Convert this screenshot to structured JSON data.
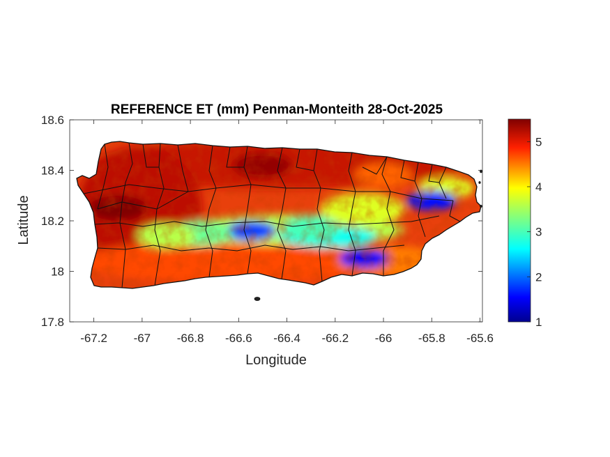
{
  "chart_data": {
    "type": "heatmap",
    "title": "REFERENCE ET (mm) Penman-Monteith 28-Oct-2025",
    "xlabel": "Longitude",
    "ylabel": "Latitude",
    "xlim": [
      -67.3,
      -65.59
    ],
    "ylim": [
      17.8,
      18.6
    ],
    "x_ticks": [
      -67.2,
      -67,
      -66.8,
      -66.6,
      -66.4,
      -66.2,
      -66,
      -65.8,
      -65.6
    ],
    "x_tick_labels": [
      "-67.2",
      "-67",
      "-66.8",
      "-66.6",
      "-66.4",
      "-66.2",
      "-66",
      "-65.8",
      "-65.6"
    ],
    "y_ticks": [
      17.8,
      18,
      18.2,
      18.4,
      18.6
    ],
    "y_tick_labels": [
      "17.8",
      "18",
      "18.2",
      "18.4",
      "18.6"
    ],
    "colorbar": {
      "colormap": "jet",
      "limits": [
        1,
        5.5
      ],
      "ticks": [
        1,
        2,
        3,
        4,
        5
      ],
      "tick_labels": [
        "1",
        "2",
        "3",
        "4",
        "5"
      ]
    },
    "region": "Puerto Rico",
    "grid": false,
    "field_features": [
      {
        "lon": -66.55,
        "lat": 18.16,
        "value": 1.8
      },
      {
        "lon": -66.08,
        "lat": 18.05,
        "value": 1.5
      },
      {
        "lon": -65.8,
        "lat": 18.28,
        "value": 1.6
      },
      {
        "lon": -66.3,
        "lat": 18.17,
        "value": 3.0
      },
      {
        "lon": -66.75,
        "lat": 18.15,
        "value": 3.2
      },
      {
        "lon": -66.9,
        "lat": 18.14,
        "value": 3.6
      },
      {
        "lon": -66.5,
        "lat": 18.42,
        "value": 5.4
      },
      {
        "lon": -67.1,
        "lat": 18.25,
        "value": 5.5
      },
      {
        "lon": -66.0,
        "lat": 18.38,
        "value": 4.6
      }
    ]
  }
}
